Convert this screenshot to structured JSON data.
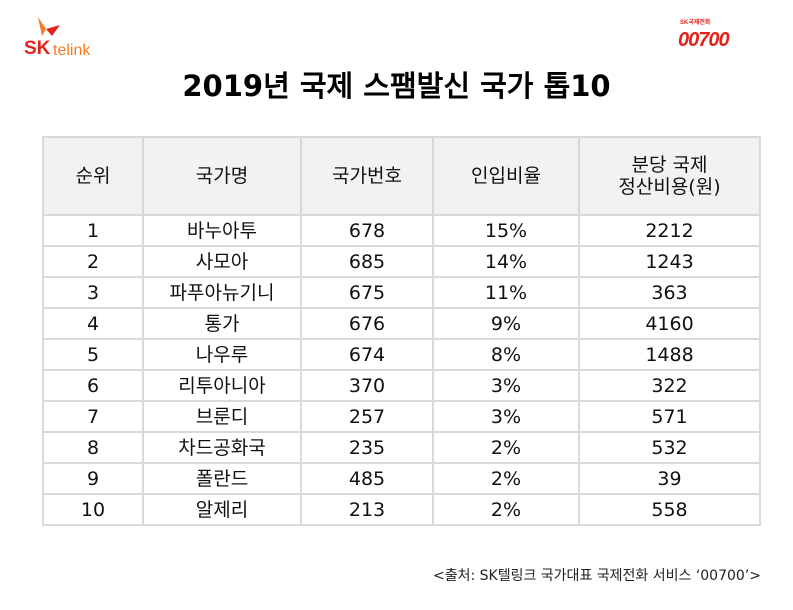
{
  "logos": {
    "left": "SK telink",
    "right_small": "SK국제전화",
    "right_big": "00700",
    "brand_red": "#e2231a",
    "brand_orange": "#f47b20"
  },
  "title": "2019년 국제 스팸발신 국가 톱10",
  "table": {
    "headers": [
      "순위",
      "국가명",
      "국가번호",
      "인입비율",
      "분당 국제\n정산비용(원)"
    ],
    "rows": [
      [
        "1",
        "바누아투",
        "678",
        "15%",
        "2212"
      ],
      [
        "2",
        "사모아",
        "685",
        "14%",
        "1243"
      ],
      [
        "3",
        "파푸아뉴기니",
        "675",
        "11%",
        "363"
      ],
      [
        "4",
        "통가",
        "676",
        "9%",
        "4160"
      ],
      [
        "5",
        "나우루",
        "674",
        "8%",
        "1488"
      ],
      [
        "6",
        "리투아니아",
        "370",
        "3%",
        "322"
      ],
      [
        "7",
        "브룬디",
        "257",
        "3%",
        "571"
      ],
      [
        "8",
        "차드공화국",
        "235",
        "2%",
        "532"
      ],
      [
        "9",
        "폴란드",
        "485",
        "2%",
        "39"
      ],
      [
        "10",
        "알제리",
        "213",
        "2%",
        "558"
      ]
    ]
  },
  "source": "<출처: SK텔링크 국가대표 국제전화 서비스 ‘00700’>"
}
